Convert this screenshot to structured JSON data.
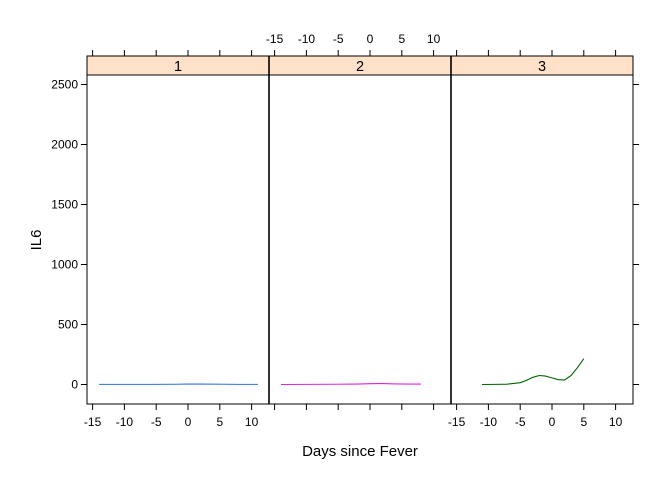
{
  "chart_data": {
    "type": "line",
    "layout": "trellis",
    "xlabel": "Days since Fever",
    "ylabel": "IL6",
    "xlim": [
      -16,
      13
    ],
    "ylim": [
      -160,
      2700
    ],
    "x_ticks": [
      -15,
      -10,
      -5,
      0,
      5,
      10
    ],
    "y_ticks": [
      0,
      500,
      1000,
      1500,
      2000,
      2500
    ],
    "strip_color": "#FFE0C8",
    "panels": [
      {
        "label": "1",
        "color": "#2E6FE0",
        "x": [
          -14,
          -10,
          -6,
          -2,
          0,
          2,
          6,
          8,
          11
        ],
        "y": [
          1,
          1,
          1,
          2,
          4,
          4,
          2,
          1,
          1
        ]
      },
      {
        "label": "2",
        "color": "#E020E0",
        "x": [
          -14,
          -10,
          -6,
          -2,
          0,
          2,
          4,
          6,
          8
        ],
        "y": [
          0,
          1,
          2,
          4,
          7,
          8,
          5,
          4,
          4
        ]
      },
      {
        "label": "3",
        "color": "#006400",
        "x": [
          -11,
          -9,
          -7,
          -5,
          -4,
          -3,
          -2,
          -1,
          0,
          1,
          2,
          3,
          4,
          5
        ],
        "y": [
          0,
          1,
          3,
          15,
          35,
          60,
          75,
          70,
          55,
          40,
          38,
          75,
          140,
          215
        ]
      }
    ]
  }
}
